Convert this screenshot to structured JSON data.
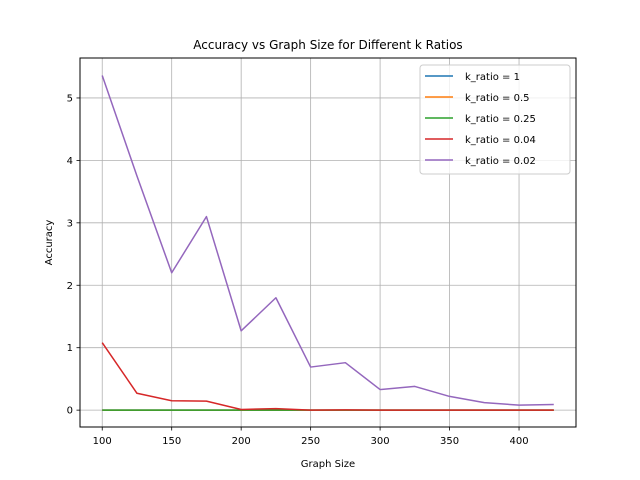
{
  "chart_data": {
    "type": "line",
    "title": "Accuracy vs Graph Size for Different k Ratios",
    "xlabel": "Graph Size",
    "ylabel": "Accuracy",
    "xlim": [
      84,
      441
    ],
    "ylim": [
      -0.27,
      5.64
    ],
    "xticks": [
      100,
      150,
      200,
      250,
      300,
      350,
      400
    ],
    "yticks": [
      0,
      1,
      2,
      3,
      4,
      5
    ],
    "grid": true,
    "legend_position": "top-right",
    "x": [
      100,
      125,
      150,
      175,
      200,
      225,
      250,
      275,
      300,
      325,
      350,
      375,
      400,
      425
    ],
    "series": [
      {
        "name": "k_ratio = 1",
        "color": "#1f77b4",
        "values": [
          0,
          0,
          0,
          0,
          0,
          0,
          0,
          0,
          0,
          0,
          0,
          0,
          0,
          0
        ]
      },
      {
        "name": "k_ratio = 0.5",
        "color": "#ff7f0e",
        "values": [
          0,
          0,
          0,
          0,
          0,
          0,
          0,
          0,
          0,
          0,
          0,
          0,
          0,
          0
        ]
      },
      {
        "name": "k_ratio = 0.25",
        "color": "#2ca02c",
        "values": [
          0,
          0,
          0,
          0,
          0,
          0,
          0,
          0,
          0,
          0,
          0,
          0,
          0,
          0
        ]
      },
      {
        "name": "k_ratio = 0.04",
        "color": "#d62728",
        "values": [
          1.08,
          0.27,
          0.15,
          0.145,
          0.01,
          0.025,
          0.0,
          0.005,
          0.0,
          0.0,
          0.0,
          0.0,
          0.0,
          0.0
        ]
      },
      {
        "name": "k_ratio = 0.02",
        "color": "#9467bd",
        "values": [
          5.36,
          3.75,
          2.2,
          3.1,
          1.27,
          1.8,
          0.69,
          0.76,
          0.33,
          0.38,
          0.22,
          0.12,
          0.08,
          0.09
        ]
      }
    ]
  }
}
